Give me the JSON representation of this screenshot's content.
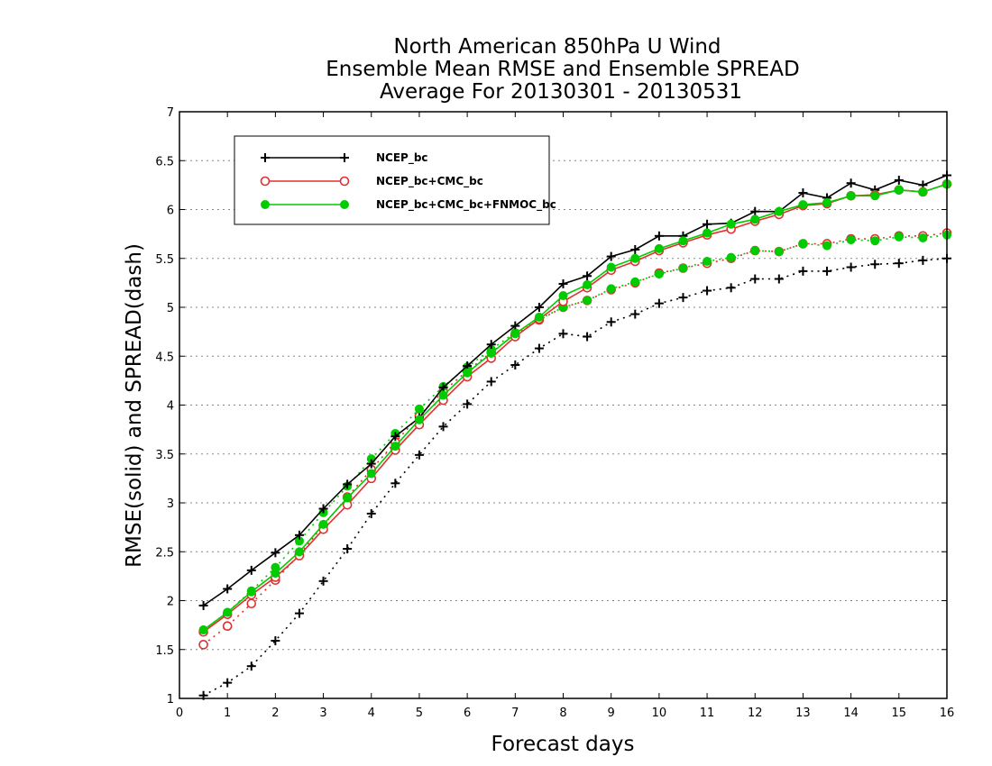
{
  "chart_data": {
    "type": "line",
    "title": [
      "North American 850hPa U Wind",
      "Ensemble Mean RMSE and Ensemble SPREAD",
      "Average For 20130301 - 20130531"
    ],
    "xlabel": "Forecast days",
    "ylabel": "RMSE(solid) and SPREAD(dash)",
    "xlim": [
      0,
      16
    ],
    "ylim": [
      1,
      7
    ],
    "xticks": [
      0,
      1,
      2,
      3,
      4,
      5,
      6,
      7,
      8,
      9,
      10,
      11,
      12,
      13,
      14,
      15,
      16
    ],
    "yticks": [
      1,
      1.5,
      2,
      2.5,
      3,
      3.5,
      4,
      4.5,
      5,
      5.5,
      6,
      6.5,
      7
    ],
    "grid": "horizontal dotted",
    "legend_position": "top-left",
    "x": [
      0.5,
      1,
      1.5,
      2,
      2.5,
      3,
      3.5,
      4,
      4.5,
      5,
      5.5,
      6,
      6.5,
      7,
      7.5,
      8,
      8.5,
      9,
      9.5,
      10,
      10.5,
      11,
      11.5,
      12,
      12.5,
      13,
      13.5,
      14,
      14.5,
      15,
      15.5,
      16
    ],
    "series": [
      {
        "name": "NCEP_bc",
        "metric": "RMSE",
        "style": "solid",
        "color": "#000000",
        "marker": "plus",
        "values": [
          1.95,
          2.12,
          2.31,
          2.49,
          2.67,
          2.94,
          3.19,
          3.4,
          3.68,
          3.87,
          4.18,
          4.4,
          4.62,
          4.81,
          5.0,
          5.24,
          5.32,
          5.52,
          5.59,
          5.73,
          5.73,
          5.85,
          5.86,
          5.98,
          5.98,
          6.17,
          6.12,
          6.27,
          6.2,
          6.3,
          6.25,
          6.35
        ]
      },
      {
        "name": "NCEP_bc+CMC_bc",
        "metric": "RMSE",
        "style": "solid",
        "color": "#e03030",
        "marker": "open-circle",
        "values": [
          1.68,
          1.86,
          2.06,
          2.24,
          2.46,
          2.73,
          2.98,
          3.25,
          3.54,
          3.8,
          4.05,
          4.29,
          4.48,
          4.7,
          4.88,
          5.06,
          5.2,
          5.38,
          5.47,
          5.58,
          5.66,
          5.74,
          5.8,
          5.88,
          5.95,
          6.04,
          6.06,
          6.14,
          6.15,
          6.2,
          6.18,
          6.26
        ]
      },
      {
        "name": "NCEP_bc+CMC_bc+FNMOC_bc",
        "metric": "RMSE",
        "style": "solid",
        "color": "#00cc00",
        "marker": "filled-circle",
        "values": [
          1.7,
          1.88,
          2.09,
          2.28,
          2.5,
          2.78,
          3.05,
          3.3,
          3.58,
          3.85,
          4.1,
          4.33,
          4.53,
          4.73,
          4.9,
          5.12,
          5.23,
          5.41,
          5.5,
          5.6,
          5.68,
          5.76,
          5.85,
          5.9,
          5.98,
          6.05,
          6.07,
          6.14,
          6.14,
          6.2,
          6.18,
          6.26
        ]
      },
      {
        "name": "NCEP_bc",
        "metric": "SPREAD",
        "style": "dash",
        "color": "#000000",
        "marker": "plus",
        "values": [
          1.03,
          1.16,
          1.33,
          1.59,
          1.87,
          2.2,
          2.53,
          2.89,
          3.2,
          3.49,
          3.78,
          4.01,
          4.24,
          4.41,
          4.58,
          4.73,
          4.7,
          4.85,
          4.93,
          5.04,
          5.1,
          5.17,
          5.2,
          5.29,
          5.29,
          5.37,
          5.37,
          5.41,
          5.44,
          5.45,
          5.48,
          5.5
        ]
      },
      {
        "name": "NCEP_bc+CMC_bc",
        "metric": "SPREAD",
        "style": "dash",
        "color": "#e03030",
        "marker": "open-circle",
        "values": [
          1.55,
          1.74,
          1.97,
          2.21,
          2.47,
          2.77,
          3.06,
          3.34,
          3.62,
          3.89,
          4.14,
          4.35,
          4.54,
          4.72,
          4.87,
          5.0,
          5.07,
          5.18,
          5.25,
          5.35,
          5.4,
          5.45,
          5.5,
          5.58,
          5.57,
          5.65,
          5.65,
          5.7,
          5.7,
          5.73,
          5.73,
          5.76
        ]
      },
      {
        "name": "NCEP_bc+CMC_bc+FNMOC_bc",
        "metric": "SPREAD",
        "style": "dash",
        "color": "#00cc00",
        "marker": "filled-circle",
        "values": [
          1.7,
          1.88,
          2.1,
          2.34,
          2.61,
          2.9,
          3.17,
          3.45,
          3.71,
          3.96,
          4.19,
          4.39,
          4.57,
          4.74,
          4.88,
          5.0,
          5.07,
          5.19,
          5.26,
          5.34,
          5.4,
          5.47,
          5.51,
          5.58,
          5.57,
          5.65,
          5.63,
          5.69,
          5.68,
          5.72,
          5.71,
          5.74
        ]
      }
    ],
    "legend": [
      {
        "label": "NCEP_bc",
        "color": "#000000",
        "marker": "plus"
      },
      {
        "label": "NCEP_bc+CMC_bc",
        "color": "#e03030",
        "marker": "open-circle"
      },
      {
        "label": "NCEP_bc+CMC_bc+FNMOC_bc",
        "color": "#00cc00",
        "marker": "filled-circle"
      }
    ]
  }
}
